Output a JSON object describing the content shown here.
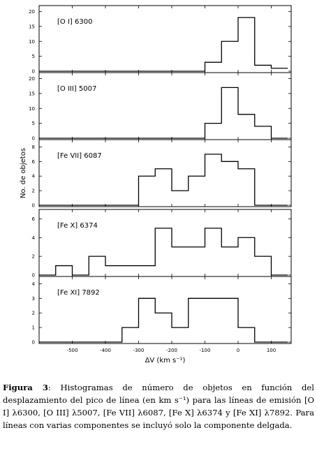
{
  "chart_data": {
    "type": "histogram",
    "ylabel": "No. de objetos",
    "xlabel": "ΔV (km s⁻¹)",
    "xlim": [
      -600,
      160
    ],
    "xticks": [
      -500,
      -400,
      -300,
      -200,
      -100,
      0,
      100
    ],
    "bin_edges": [
      -600,
      -550,
      -500,
      -450,
      -400,
      -350,
      -300,
      -250,
      -200,
      -150,
      -100,
      -50,
      0,
      50,
      100,
      150
    ],
    "panels": [
      {
        "label": "[O I] 6300",
        "ylim": [
          0,
          22
        ],
        "yticks": [
          0,
          5,
          10,
          15,
          20
        ],
        "counts": [
          0,
          0,
          0,
          0,
          0,
          0,
          0,
          0,
          0,
          0,
          3,
          10,
          18,
          2,
          1
        ]
      },
      {
        "label": "[O III] 5007",
        "ylim": [
          0,
          22
        ],
        "yticks": [
          0,
          5,
          10,
          15,
          20
        ],
        "counts": [
          0,
          0,
          0,
          0,
          0,
          0,
          0,
          0,
          0,
          0,
          5,
          17,
          8,
          4,
          0
        ]
      },
      {
        "label": "[Fe VII] 6087",
        "ylim": [
          0,
          9
        ],
        "yticks": [
          0,
          2,
          4,
          6,
          8
        ],
        "counts": [
          0,
          0,
          0,
          0,
          0,
          0,
          4,
          5,
          2,
          4,
          7,
          6,
          5,
          0,
          0
        ]
      },
      {
        "label": "[Fe X] 6374",
        "ylim": [
          0,
          7
        ],
        "yticks": [
          0,
          2,
          4,
          6
        ],
        "counts": [
          0,
          1,
          0,
          2,
          1,
          1,
          1,
          5,
          3,
          3,
          5,
          3,
          4,
          2,
          0
        ]
      },
      {
        "label": "[Fe XI] 7892",
        "ylim": [
          0,
          4.5
        ],
        "yticks": [
          0,
          1,
          2,
          3,
          4
        ],
        "counts": [
          0,
          0,
          0,
          0,
          0,
          1,
          3,
          2,
          1,
          3,
          3,
          3,
          1,
          0,
          0
        ]
      }
    ]
  },
  "caption": {
    "label": "Figura 3",
    "text": ": Histogramas de número de objetos en función del desplazamiento del pico de línea (en km s⁻¹) para las líneas de emisión [O I] λ6300, [O III] λ5007, [Fe VII] λ6087, [Fe X] λ6374 y [Fe XI] λ7892. Para líneas con varias componentes se incluyó solo la componente delgada."
  }
}
